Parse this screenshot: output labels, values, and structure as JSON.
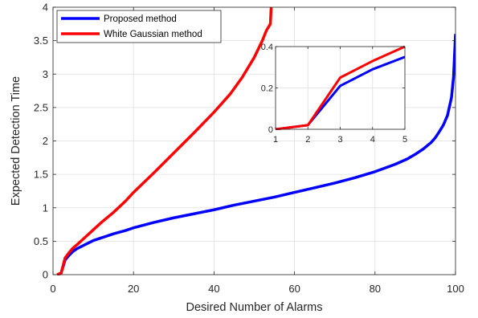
{
  "colors": {
    "proposed": "#0000ff",
    "white_gaussian": "#ff0000",
    "axis": "#262626",
    "grid": "#dfdfdf"
  },
  "chart_data": [
    {
      "type": "line",
      "role": "main",
      "xlabel": "Desired Number of Alarms",
      "ylabel": "Expected Detection Time",
      "xlim": [
        0,
        100
      ],
      "ylim": [
        0,
        4
      ],
      "xticks": [
        0,
        20,
        40,
        60,
        80,
        100
      ],
      "yticks": [
        0,
        0.5,
        1,
        1.5,
        2,
        2.5,
        3,
        3.5,
        4
      ],
      "xtick_labels": [
        "0",
        "20",
        "40",
        "60",
        "80",
        "100"
      ],
      "ytick_labels": [
        "0",
        "0.5",
        "1",
        "1.5",
        "2",
        "2.5",
        "3",
        "3.5",
        "4"
      ],
      "grid": true,
      "legend": "top-left",
      "series": [
        {
          "name": "Proposed method",
          "color": "#0000ff",
          "x": [
            1,
            2,
            3,
            4,
            5,
            6,
            8,
            10,
            12,
            15,
            18,
            20,
            25,
            30,
            35,
            40,
            45,
            50,
            55,
            60,
            65,
            70,
            75,
            80,
            85,
            88,
            90,
            92,
            94,
            95,
            96,
            97,
            98,
            99,
            99.5,
            100
          ],
          "y": [
            0,
            0.02,
            0.22,
            0.29,
            0.35,
            0.39,
            0.45,
            0.51,
            0.55,
            0.61,
            0.66,
            0.7,
            0.78,
            0.85,
            0.91,
            0.97,
            1.04,
            1.1,
            1.16,
            1.23,
            1.3,
            1.37,
            1.45,
            1.54,
            1.65,
            1.73,
            1.8,
            1.88,
            1.98,
            2.05,
            2.14,
            2.24,
            2.38,
            2.65,
            2.95,
            3.6
          ]
        },
        {
          "name": "White Gaussian method",
          "color": "#ff0000",
          "x": [
            1,
            2,
            3,
            4,
            5,
            6,
            8,
            10,
            12,
            15,
            18,
            20,
            25,
            30,
            35,
            40,
            44,
            47,
            50,
            52,
            53,
            54,
            54.2
          ],
          "y": [
            0,
            0.02,
            0.25,
            0.33,
            0.4,
            0.45,
            0.56,
            0.67,
            0.78,
            0.93,
            1.1,
            1.23,
            1.52,
            1.82,
            2.12,
            2.43,
            2.7,
            2.95,
            3.25,
            3.5,
            3.65,
            3.75,
            4.0
          ]
        }
      ]
    },
    {
      "type": "line",
      "role": "inset",
      "xlim": [
        1,
        5
      ],
      "ylim": [
        0,
        0.4
      ],
      "xticks": [
        1,
        2,
        3,
        4,
        5
      ],
      "yticks": [
        0,
        0.2,
        0.4
      ],
      "xtick_labels": [
        "1",
        "2",
        "3",
        "4",
        "5"
      ],
      "ytick_labels": [
        "0",
        "0.2",
        "0.4"
      ],
      "grid": true,
      "series": [
        {
          "color": "#0000ff",
          "x": [
            1,
            2,
            3,
            4,
            5
          ],
          "y": [
            0.0,
            0.02,
            0.21,
            0.29,
            0.35
          ]
        },
        {
          "color": "#ff0000",
          "x": [
            1,
            2,
            3,
            4,
            5
          ],
          "y": [
            0.0,
            0.02,
            0.25,
            0.33,
            0.4
          ]
        }
      ]
    }
  ]
}
